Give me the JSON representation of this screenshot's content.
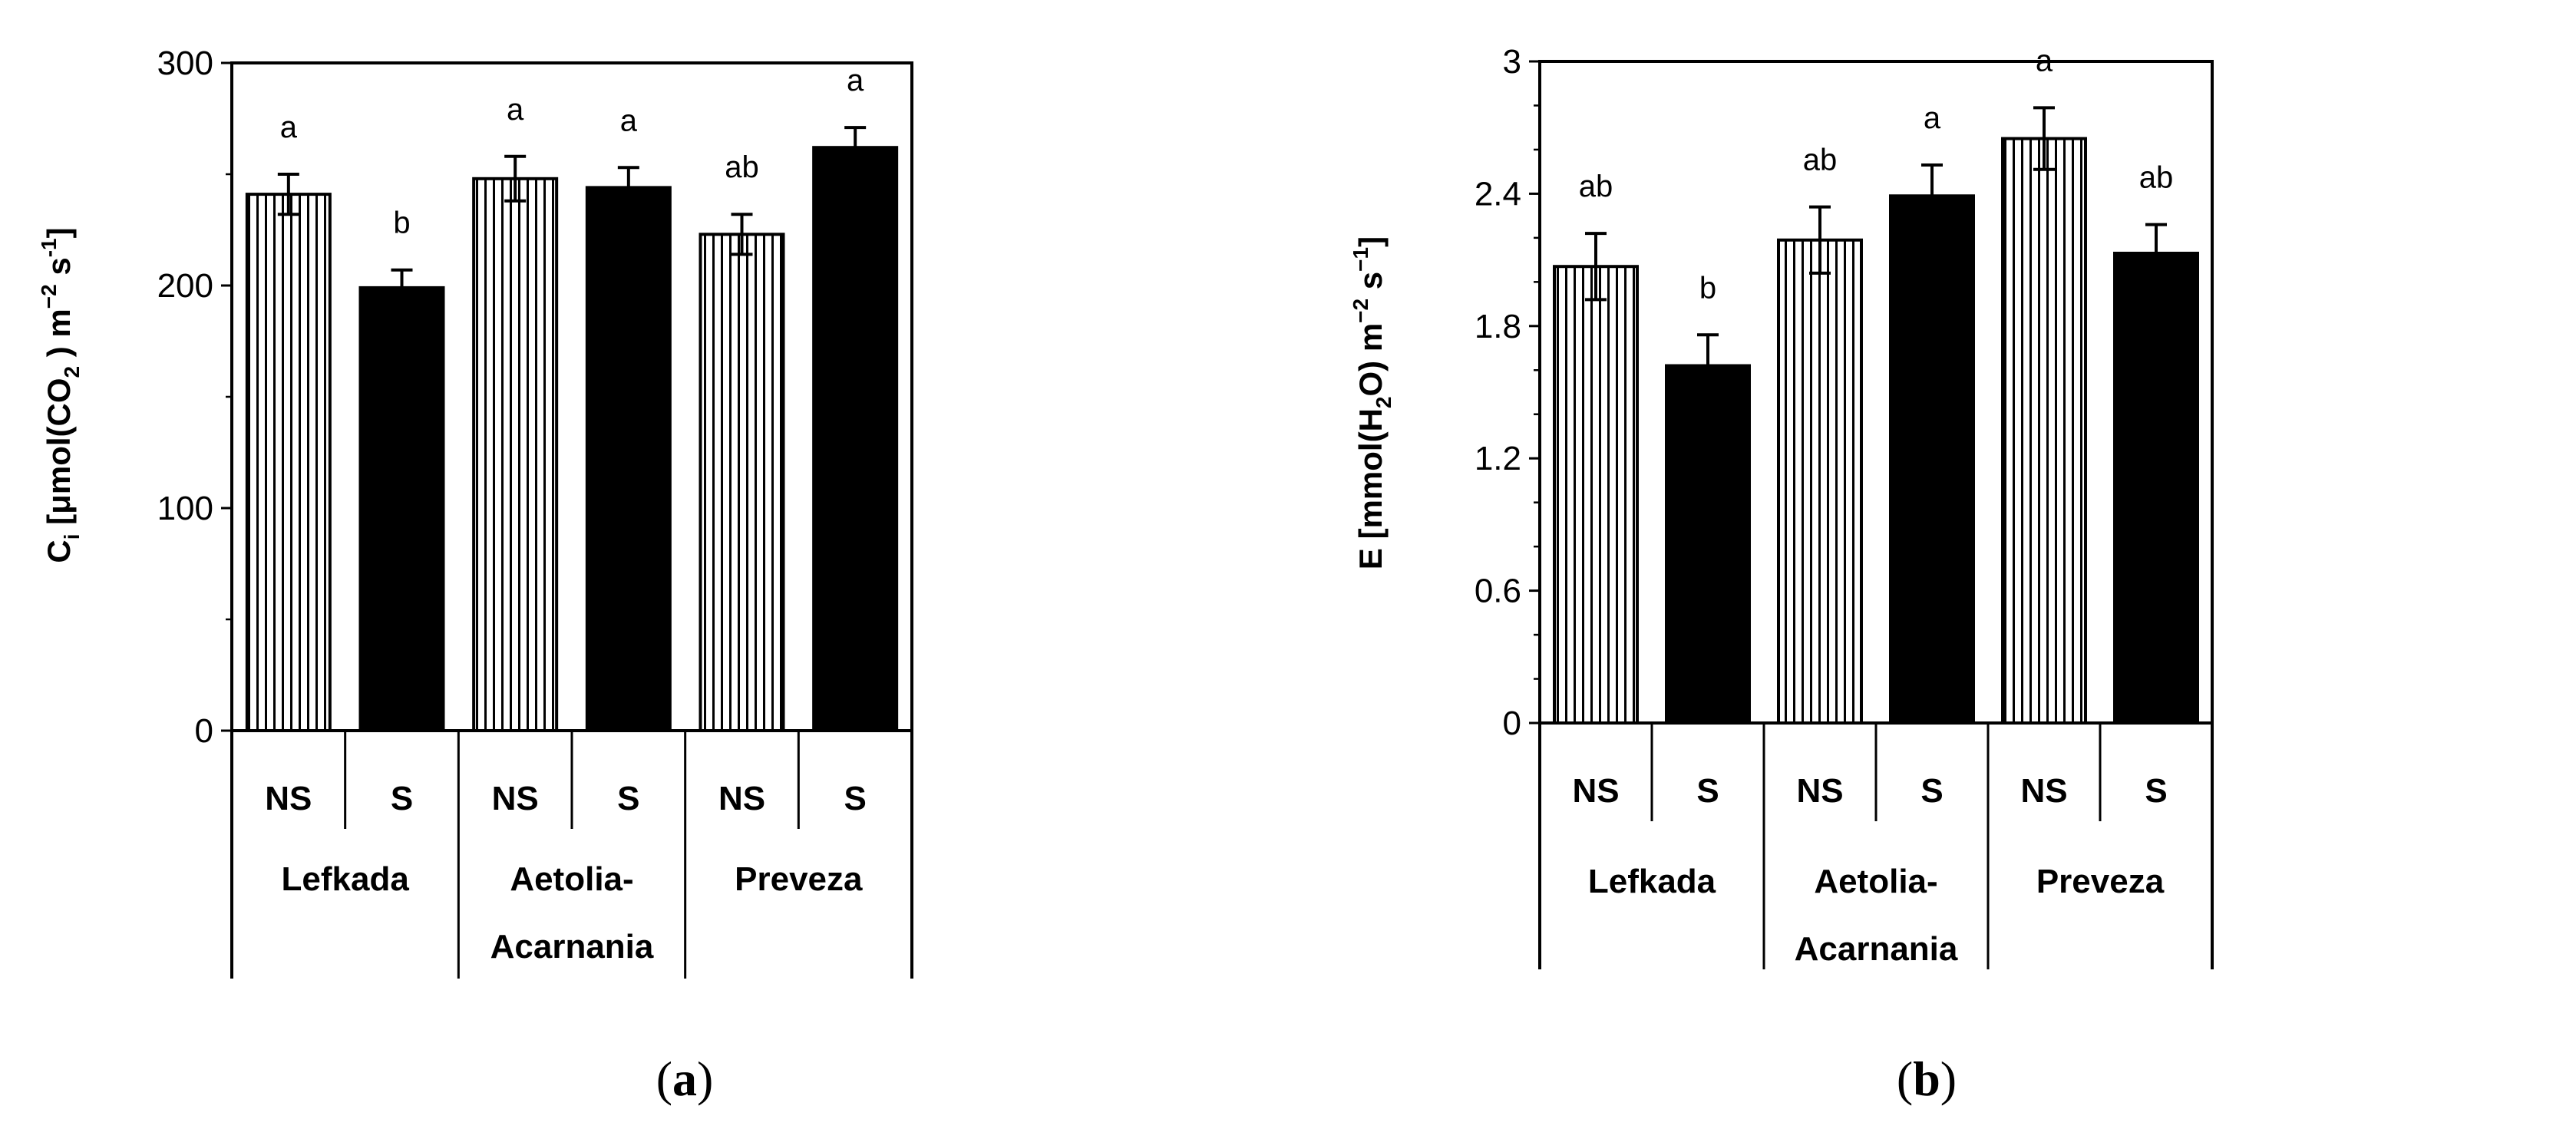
{
  "colors": {
    "axis": "#000000",
    "solid_bar": "#000000",
    "hatched_bar_fill": "#ffffff",
    "hatch": "#000000"
  },
  "chart_data": [
    {
      "type": "bar",
      "panel_label": {
        "open": "(",
        "letter": "a",
        "close": ")"
      },
      "ylabel": {
        "prefix": "C",
        "sub": "i",
        "text": " [μmol(CO",
        "sub2": "2",
        "text2": " ) m",
        "sup1": "−2",
        "text3": " s",
        "sup2": "-1",
        "text4": "]"
      },
      "ylim": [
        0,
        300
      ],
      "yticks": [
        "0",
        "100",
        "200",
        "300"
      ],
      "ytick_values": [
        0,
        100,
        200,
        300
      ],
      "minor_tick_step": 50,
      "treatments": [
        "NS",
        "S",
        "NS",
        "S",
        "NS",
        "S"
      ],
      "groups": [
        {
          "lines": [
            "Lefkada"
          ]
        },
        {
          "lines": [
            "Aetolia-",
            "Acarnania"
          ]
        },
        {
          "lines": [
            "Preveza"
          ]
        }
      ],
      "pattern": [
        "hatched",
        "solid",
        "hatched",
        "solid",
        "hatched",
        "solid"
      ],
      "values": [
        241,
        199,
        248,
        244,
        223,
        262
      ],
      "errors": [
        9,
        8,
        10,
        9,
        9,
        9
      ],
      "letters": [
        "a",
        "b",
        "a",
        "a",
        "ab",
        "a"
      ]
    },
    {
      "type": "bar",
      "panel_label": {
        "open": "(",
        "letter": "b",
        "close": ")"
      },
      "ylabel": {
        "prefix": "E [mmol(H",
        "sub": "2",
        "text": "O) m",
        "sup1": "−2",
        "text2": " s",
        "sup2": "−1",
        "text3": "]"
      },
      "ylim": [
        0,
        3
      ],
      "yticks": [
        "0",
        "0.6",
        "1.2",
        "1.8",
        "2.4",
        "3"
      ],
      "ytick_values": [
        0,
        0.6,
        1.2,
        1.8,
        2.4,
        3
      ],
      "minor_tick_step": 0.2,
      "treatments": [
        "NS",
        "S",
        "NS",
        "S",
        "NS",
        "S"
      ],
      "groups": [
        {
          "lines": [
            "Lefkada"
          ]
        },
        {
          "lines": [
            "Aetolia-",
            "Acarnania"
          ]
        },
        {
          "lines": [
            "Preveza"
          ]
        }
      ],
      "pattern": [
        "hatched",
        "solid",
        "hatched",
        "solid",
        "hatched",
        "solid"
      ],
      "values": [
        2.07,
        1.62,
        2.19,
        2.39,
        2.65,
        2.13
      ],
      "errors": [
        0.15,
        0.14,
        0.15,
        0.14,
        0.14,
        0.13
      ],
      "letters": [
        "ab",
        "b",
        "ab",
        "a",
        "a",
        "ab"
      ]
    }
  ]
}
